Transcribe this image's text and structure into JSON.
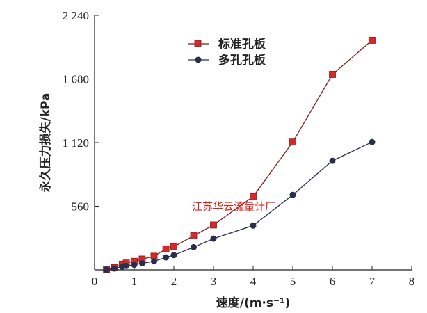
{
  "chart_data": {
    "type": "line",
    "xlabel": "速度/(m·s⁻¹)",
    "ylabel": "永久压力损失/kPa",
    "xlim": [
      0,
      8
    ],
    "ylim": [
      0,
      2240
    ],
    "x_ticks": [
      "0",
      "1",
      "2",
      "3",
      "4",
      "5",
      "6",
      "7",
      "8"
    ],
    "y_ticks": [
      "560",
      "1 120",
      "1 680",
      "2 240"
    ],
    "legend_position": "top-center",
    "grid": false,
    "series": [
      {
        "name": "标准孔板",
        "marker": "square",
        "color": "#d62a2a",
        "x": [
          0.3,
          0.5,
          0.7,
          0.8,
          1.0,
          1.2,
          1.5,
          1.8,
          2.0,
          2.5,
          3.0,
          4.0,
          5.0,
          6.0,
          7.0
        ],
        "y": [
          5,
          20,
          50,
          60,
          75,
          95,
          120,
          185,
          205,
          300,
          395,
          645,
          1125,
          1720,
          2020
        ]
      },
      {
        "name": "多孔孔板",
        "marker": "circle",
        "color": "#2b2d4d",
        "x": [
          0.3,
          0.5,
          0.7,
          0.8,
          1.0,
          1.2,
          1.5,
          1.8,
          2.0,
          2.5,
          3.0,
          4.0,
          5.0,
          6.0,
          7.0
        ],
        "y": [
          3,
          12,
          28,
          35,
          45,
          58,
          75,
          110,
          130,
          200,
          275,
          390,
          660,
          960,
          1125
        ]
      }
    ]
  },
  "watermark": "江苏华云流量计厂"
}
